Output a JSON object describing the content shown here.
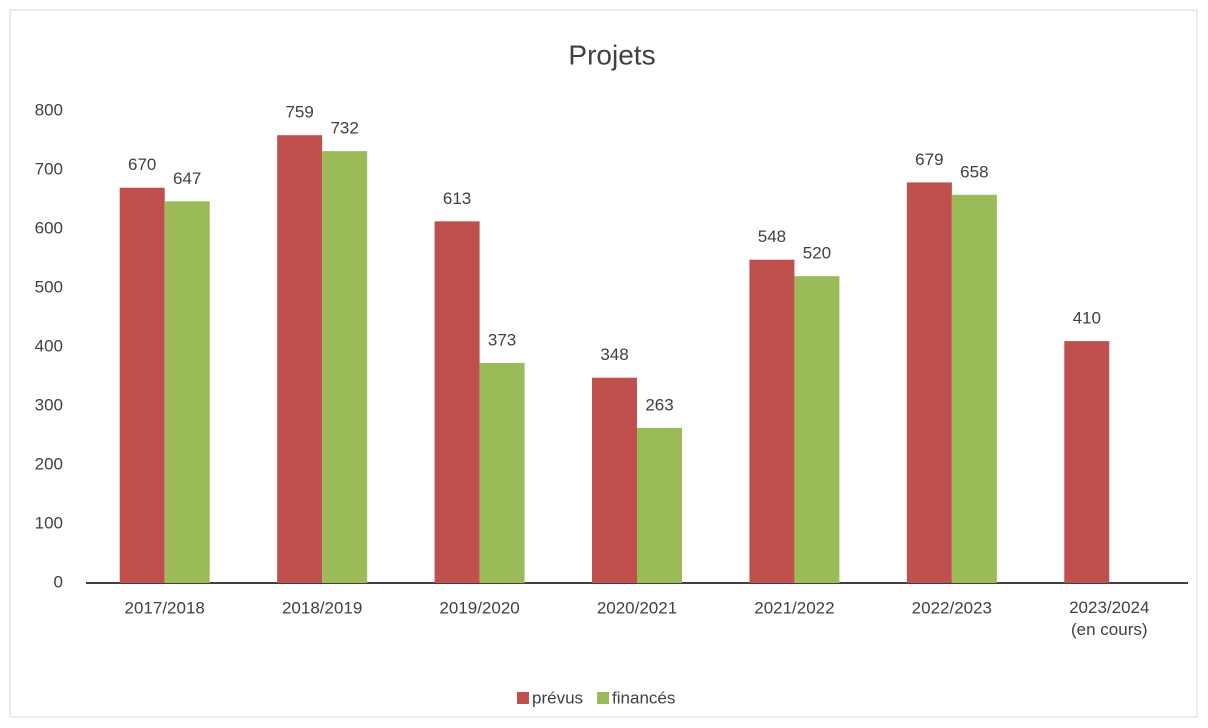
{
  "chart_data": {
    "type": "bar",
    "title": "Projets",
    "categories": [
      "2017/2018",
      "2018/2019",
      "2019/2020",
      "2020/2021",
      "2021/2022",
      "2022/2023",
      "2023/2024\n(en cours)"
    ],
    "series": [
      {
        "name": "prévus",
        "color": "#c0504d",
        "values": [
          670,
          759,
          613,
          348,
          548,
          679,
          410
        ]
      },
      {
        "name": "financés",
        "color": "#9bbb59",
        "values": [
          647,
          732,
          373,
          263,
          520,
          658,
          null
        ]
      }
    ],
    "ylim": [
      0,
      800
    ],
    "yticks": [
      0,
      100,
      200,
      300,
      400,
      500,
      600,
      700,
      800
    ],
    "grid": false,
    "legend": "bottom"
  }
}
